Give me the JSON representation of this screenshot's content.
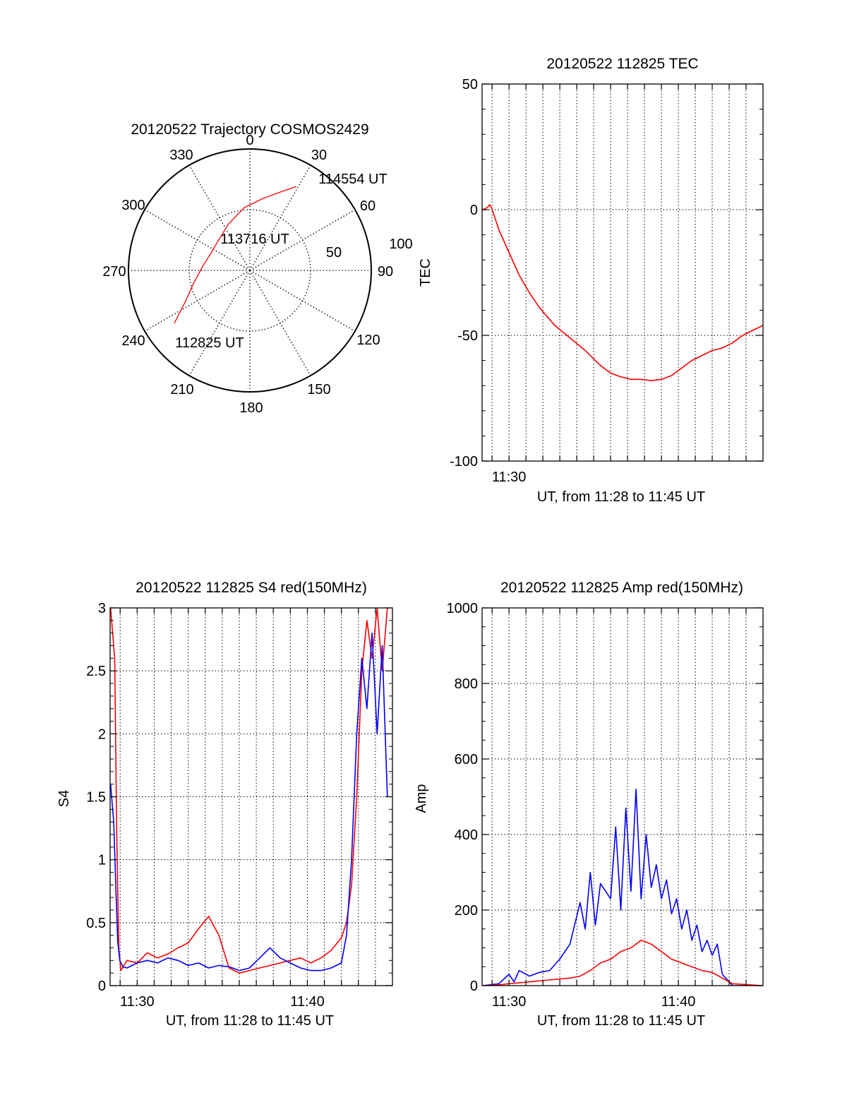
{
  "colors": {
    "red": "#ff0000",
    "blue": "#0000ff",
    "axis": "#000000",
    "grid": "#000000"
  },
  "chart_data": [
    {
      "id": "polar",
      "type": "scatter",
      "projection": "polar",
      "title": "20120522 Trajectory COSMOS2429",
      "azimuth_labels": [
        "0",
        "30",
        "60",
        "90",
        "120",
        "150",
        "180",
        "210",
        "240",
        "270",
        "300",
        "330"
      ],
      "radius_labels": [
        "50",
        "100"
      ],
      "radius_max": 100,
      "grid": true,
      "series": [
        {
          "color": "red",
          "points": [
            {
              "az": 235,
              "r": 76
            },
            {
              "az": 245,
              "r": 58
            },
            {
              "az": 258,
              "r": 47
            },
            {
              "az": 275,
              "r": 39
            },
            {
              "az": 295,
              "r": 35
            },
            {
              "az": 315,
              "r": 36
            },
            {
              "az": 335,
              "r": 42
            },
            {
              "az": 355,
              "r": 52
            },
            {
              "az": 10,
              "r": 60
            },
            {
              "az": 20,
              "r": 68
            },
            {
              "az": 29,
              "r": 79
            }
          ]
        }
      ],
      "annotations": [
        {
          "text": "112825 UT",
          "az": 235,
          "r": 76
        },
        {
          "text": "113716 UT",
          "az": 0,
          "r": 26
        },
        {
          "text": "114554 UT",
          "az": 29,
          "r": 79
        }
      ]
    },
    {
      "id": "tec",
      "type": "line",
      "title": "20120522 112825 TEC",
      "xlabel": "UT, from 11:28 to 11:45 UT",
      "ylabel": "TEC",
      "xlim": [
        11.4735,
        11.75
      ],
      "ylim": [
        -100,
        50
      ],
      "yticks": [
        -100,
        -50,
        0,
        50
      ],
      "xticks": [
        {
          "value": 11.5,
          "label": "11:30"
        }
      ],
      "grid": true,
      "series": [
        {
          "color": "red",
          "x": [
            11.4736,
            11.477,
            11.479,
            11.481,
            11.483,
            11.486,
            11.49,
            11.5,
            11.51,
            11.52,
            11.53,
            11.545,
            11.56,
            11.575,
            11.59,
            11.6,
            11.61,
            11.62,
            11.63,
            11.64,
            11.65,
            11.66,
            11.67,
            11.68,
            11.69,
            11.7,
            11.71,
            11.72,
            11.73,
            11.74,
            11.75
          ],
          "y": [
            0,
            0.5,
            1,
            2,
            0.5,
            -3,
            -8,
            -17,
            -26,
            -33,
            -39,
            -46,
            -51,
            -56,
            -62,
            -65,
            -66.5,
            -67.5,
            -67.5,
            -68,
            -67.5,
            -66,
            -63,
            -60,
            -58,
            -56,
            -55,
            -53,
            -50,
            -48,
            -46
          ]
        }
      ]
    },
    {
      "id": "s4",
      "type": "line",
      "title": "20120522 112825 S4 red(150MHz)",
      "xlabel": "UT, from 11:28 to 11:45 UT",
      "ylabel": "S4",
      "xlim": [
        11.4735,
        11.75
      ],
      "ylim": [
        0,
        3
      ],
      "yticks": [
        0,
        0.5,
        1,
        1.5,
        2,
        2.5,
        3
      ],
      "xticks": [
        {
          "value": 11.5,
          "label": "11:30"
        },
        {
          "value": 11.6667,
          "label": "11:40"
        }
      ],
      "grid": true,
      "series": [
        {
          "color": "red",
          "x": [
            11.474,
            11.478,
            11.48,
            11.482,
            11.484,
            11.487,
            11.49,
            11.5,
            11.51,
            11.52,
            11.53,
            11.54,
            11.55,
            11.56,
            11.57,
            11.58,
            11.59,
            11.6,
            11.61,
            11.62,
            11.63,
            11.64,
            11.65,
            11.66,
            11.67,
            11.68,
            11.69,
            11.7,
            11.705,
            11.71,
            11.715,
            11.72,
            11.725,
            11.73,
            11.735,
            11.74,
            11.745
          ],
          "y": [
            3.0,
            2.6,
            1.2,
            0.3,
            0.12,
            0.16,
            0.2,
            0.18,
            0.26,
            0.22,
            0.25,
            0.3,
            0.34,
            0.45,
            0.55,
            0.4,
            0.14,
            0.1,
            0.12,
            0.14,
            0.16,
            0.18,
            0.2,
            0.22,
            0.18,
            0.22,
            0.28,
            0.38,
            0.5,
            0.8,
            1.5,
            2.5,
            2.9,
            2.6,
            3.0,
            2.5,
            3.0
          ]
        },
        {
          "color": "blue",
          "x": [
            11.474,
            11.477,
            11.479,
            11.481,
            11.483,
            11.486,
            11.49,
            11.5,
            11.51,
            11.52,
            11.53,
            11.54,
            11.55,
            11.56,
            11.57,
            11.58,
            11.59,
            11.6,
            11.61,
            11.62,
            11.63,
            11.64,
            11.65,
            11.66,
            11.67,
            11.68,
            11.69,
            11.7,
            11.705,
            11.71,
            11.715,
            11.72,
            11.725,
            11.73,
            11.735,
            11.74,
            11.745
          ],
          "y": [
            1.6,
            1.3,
            0.8,
            0.35,
            0.2,
            0.15,
            0.14,
            0.18,
            0.2,
            0.18,
            0.22,
            0.2,
            0.16,
            0.18,
            0.14,
            0.16,
            0.15,
            0.12,
            0.14,
            0.22,
            0.3,
            0.22,
            0.18,
            0.14,
            0.12,
            0.12,
            0.14,
            0.18,
            0.4,
            1.0,
            2.0,
            2.6,
            2.2,
            2.8,
            2.0,
            2.7,
            1.5
          ]
        }
      ]
    },
    {
      "id": "amp",
      "type": "line",
      "title": "20120522 112825 Amp red(150MHz)",
      "xlabel": "UT, from 11:28 to 11:45 UT",
      "ylabel": "Amp",
      "xlim": [
        11.4735,
        11.75
      ],
      "ylim": [
        0,
        1000
      ],
      "yticks": [
        0,
        200,
        400,
        600,
        800,
        1000
      ],
      "xticks": [
        {
          "value": 11.5,
          "label": "11:30"
        },
        {
          "value": 11.6667,
          "label": "11:40"
        }
      ],
      "grid": true,
      "series": [
        {
          "color": "blue",
          "x": [
            11.474,
            11.49,
            11.5,
            11.505,
            11.51,
            11.52,
            11.53,
            11.54,
            11.55,
            11.56,
            11.57,
            11.575,
            11.58,
            11.585,
            11.59,
            11.6,
            11.605,
            11.61,
            11.615,
            11.62,
            11.625,
            11.63,
            11.635,
            11.64,
            11.645,
            11.65,
            11.655,
            11.66,
            11.665,
            11.67,
            11.675,
            11.68,
            11.685,
            11.69,
            11.695,
            11.7,
            11.705,
            11.71,
            11.72,
            11.75
          ],
          "y": [
            0,
            5,
            30,
            10,
            40,
            25,
            35,
            40,
            70,
            110,
            220,
            150,
            300,
            160,
            270,
            230,
            420,
            200,
            470,
            250,
            520,
            230,
            400,
            260,
            320,
            230,
            280,
            190,
            230,
            150,
            200,
            120,
            160,
            90,
            120,
            80,
            110,
            30,
            0,
            0
          ]
        },
        {
          "color": "red",
          "x": [
            11.474,
            11.49,
            11.5,
            11.52,
            11.54,
            11.56,
            11.57,
            11.58,
            11.59,
            11.6,
            11.61,
            11.62,
            11.63,
            11.64,
            11.65,
            11.66,
            11.67,
            11.68,
            11.69,
            11.7,
            11.71,
            11.72,
            11.75
          ],
          "y": [
            0,
            2,
            5,
            10,
            15,
            20,
            25,
            40,
            60,
            70,
            90,
            100,
            120,
            110,
            90,
            70,
            60,
            50,
            40,
            35,
            20,
            5,
            0
          ]
        }
      ]
    }
  ]
}
